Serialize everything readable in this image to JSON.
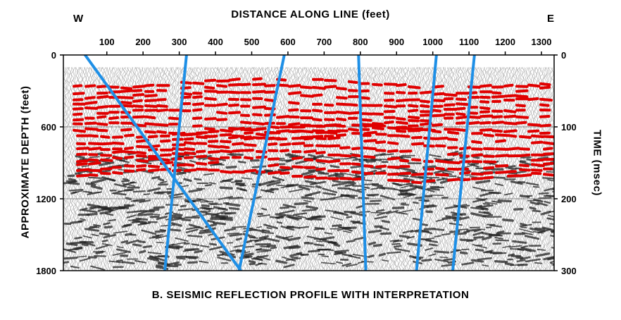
{
  "figure": {
    "title_top": "DISTANCE ALONG LINE (feet)",
    "west_label": "W",
    "east_label": "E",
    "left_axis_label": "APPROXIMATE DEPTH (feet)",
    "right_axis_label": "TIME (msec)",
    "caption": "B. SEISMIC REFLECTION PROFILE WITH INTERPRETATION"
  },
  "axes": {
    "distance_ticks": [
      100,
      200,
      300,
      400,
      500,
      600,
      700,
      800,
      900,
      1000,
      1100,
      1200,
      1300
    ],
    "depth_ticks": [
      0,
      600,
      1200,
      1800
    ],
    "time_ticks": [
      0,
      100,
      200,
      300
    ],
    "distance_range": [
      -20,
      1335
    ],
    "depth_range": [
      0,
      1800
    ],
    "time_range": [
      0,
      300
    ]
  },
  "interpretation": {
    "reflector_color": "#e00000",
    "fault_color": "#1e8fe6",
    "faults": [
      {
        "name": "",
        "top": [
          40,
          0
        ],
        "bottom": [
          470,
          1800
        ]
      },
      {
        "name": "",
        "top": [
          320,
          0
        ],
        "bottom": [
          260,
          1800
        ]
      },
      {
        "name": "",
        "top": [
          590,
          0
        ],
        "bottom": [
          465,
          1800
        ]
      },
      {
        "name": "",
        "top": [
          795,
          0
        ],
        "bottom": [
          815,
          1800
        ]
      },
      {
        "name": "",
        "top": [
          1010,
          0
        ],
        "bottom": [
          955,
          1800
        ]
      },
      {
        "name": "",
        "top": [
          1115,
          0
        ],
        "bottom": [
          1055,
          1800
        ]
      }
    ]
  }
}
